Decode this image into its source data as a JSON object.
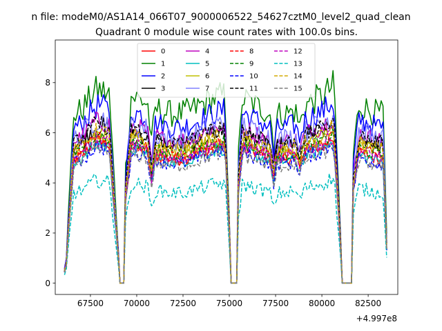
{
  "chart_data": {
    "type": "line",
    "supertitle": "n file: modeM0/AS1A14_066T07_9000006522_54627cztM0_level2_quad_clean",
    "title": "Quadrant 0 module wise count rates with 100.0s bins.",
    "xlabel": "",
    "ylabel": "",
    "x_offset_label": "+4.997e8",
    "xlim": [
      65600,
      84100
    ],
    "ylim": [
      -0.45,
      9.7
    ],
    "x_ticks": [
      67500,
      70000,
      72500,
      75000,
      77500,
      80000,
      82500
    ],
    "x_tick_labels": [
      "67500",
      "70000",
      "72500",
      "75000",
      "77500",
      "80000",
      "82500"
    ],
    "y_ticks": [
      0,
      2,
      4,
      6,
      8
    ],
    "y_tick_labels": [
      "0",
      "2",
      "4",
      "6",
      "8"
    ],
    "x_start": 66100,
    "x_step": 100,
    "n_points": 175,
    "gaps": [
      [
        69100,
        69300
      ],
      [
        75100,
        75400
      ],
      [
        81100,
        81600
      ]
    ],
    "legend_position": "upper center",
    "legend_columns": 4,
    "series": [
      {
        "name": "0",
        "color": "#ff0000",
        "dash": "solid",
        "mean": 5.5,
        "amp": 0.3
      },
      {
        "name": "1",
        "color": "#008000",
        "dash": "solid",
        "mean": 7.5,
        "amp": 0.6
      },
      {
        "name": "2",
        "color": "#0000ff",
        "dash": "solid",
        "mean": 6.9,
        "amp": 0.5
      },
      {
        "name": "3",
        "color": "#000000",
        "dash": "solid",
        "mean": 6.1,
        "amp": 0.4
      },
      {
        "name": "4",
        "color": "#bf00bf",
        "dash": "solid",
        "mean": 6.3,
        "amp": 0.4
      },
      {
        "name": "5",
        "color": "#00bfbf",
        "dash": "solid",
        "mean": 5.4,
        "amp": 0.3
      },
      {
        "name": "6",
        "color": "#bfbf00",
        "dash": "solid",
        "mean": 5.8,
        "amp": 0.35
      },
      {
        "name": "7",
        "color": "#8080ff",
        "dash": "solid",
        "mean": 6.4,
        "amp": 0.5
      },
      {
        "name": "8",
        "color": "#ff0000",
        "dash": "dashed",
        "mean": 5.6,
        "amp": 0.3
      },
      {
        "name": "9",
        "color": "#008000",
        "dash": "dashed",
        "mean": 5.7,
        "amp": 0.3
      },
      {
        "name": "10",
        "color": "#0000ff",
        "dash": "dashed",
        "mean": 5.3,
        "amp": 0.3
      },
      {
        "name": "11",
        "color": "#000000",
        "dash": "dashed",
        "mean": 6.2,
        "amp": 0.35
      },
      {
        "name": "12",
        "color": "#bf00bf",
        "dash": "dashed",
        "mean": 5.6,
        "amp": 0.3
      },
      {
        "name": "13",
        "color": "#00bfbf",
        "dash": "dashed",
        "mean": 4.0,
        "amp": 0.3
      },
      {
        "name": "14",
        "color": "#d4aa00",
        "dash": "dashed",
        "mean": 5.9,
        "amp": 0.35
      },
      {
        "name": "15",
        "color": "#7f7f7f",
        "dash": "dashed",
        "mean": 5.2,
        "amp": 0.3
      }
    ]
  }
}
